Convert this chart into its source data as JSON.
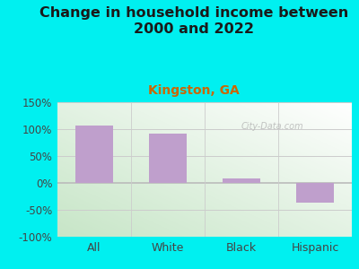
{
  "title": "Change in household income between\n2000 and 2022",
  "subtitle": "Kingston, GA",
  "categories": [
    "All",
    "White",
    "Black",
    "Hispanic"
  ],
  "values": [
    107,
    92,
    8,
    -37
  ],
  "bar_color": "#bf9fcc",
  "background_color": "#00f0f0",
  "plot_bg_color_topleft": "#e8f5e8",
  "plot_bg_color_topright": "#f8faf8",
  "plot_bg_color_bottom": "#d0e8d0",
  "ylim": [
    -100,
    150
  ],
  "yticks": [
    -100,
    -50,
    0,
    50,
    100,
    150
  ],
  "ytick_labels": [
    "-100%",
    "-50%",
    "0%",
    "50%",
    "100%",
    "150%"
  ],
  "title_fontsize": 11.5,
  "subtitle_fontsize": 10,
  "subtitle_color": "#cc6600",
  "tick_label_color": "#444444",
  "watermark": "City-Data.com",
  "grid_color": "#dddddd"
}
